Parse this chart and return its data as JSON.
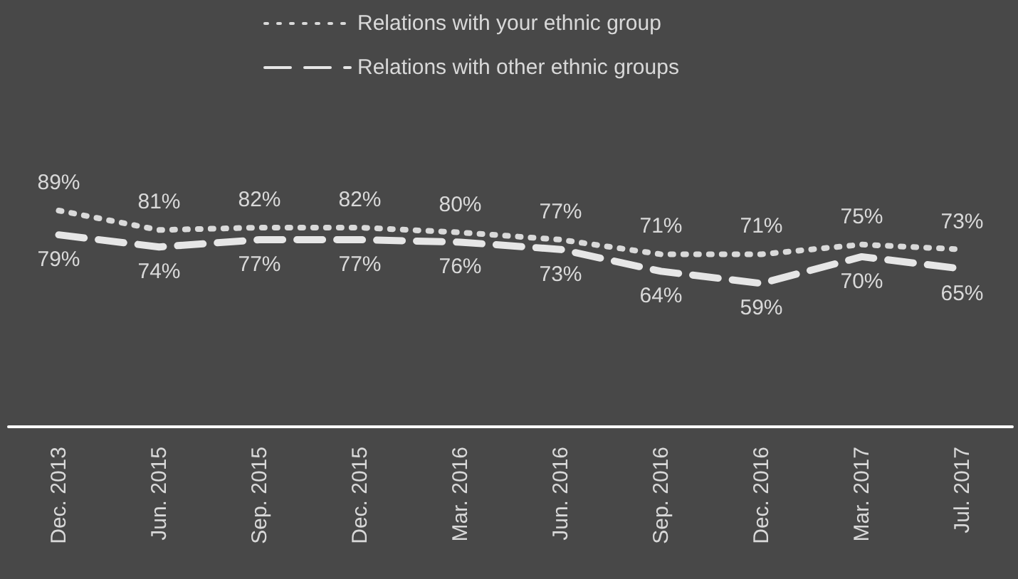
{
  "chart_data": {
    "type": "line",
    "categories": [
      "Dec. 2013",
      "Jun. 2015",
      "Sep. 2015",
      "Dec. 2015",
      "Mar. 2016",
      "Jun. 2016",
      "Sep. 2016",
      "Dec. 2016",
      "Mar. 2017",
      "Jul. 2017"
    ],
    "series": [
      {
        "name": "Relations with your ethnic group",
        "color": "#d9d9d9",
        "line_style": "dotted",
        "values": [
          89,
          81,
          82,
          82,
          80,
          77,
          71,
          71,
          75,
          73
        ],
        "value_labels": [
          "89%",
          "81%",
          "82%",
          "82%",
          "80%",
          "77%",
          "71%",
          "71%",
          "75%",
          "73%"
        ]
      },
      {
        "name": "Relations with other ethnic groups",
        "color": "#e6e6e6",
        "line_style": "dashed",
        "values": [
          79,
          74,
          77,
          77,
          76,
          73,
          64,
          59,
          70,
          65
        ],
        "value_labels": [
          "79%",
          "74%",
          "77%",
          "77%",
          "76%",
          "73%",
          "64%",
          "59%",
          "70%",
          "65%"
        ]
      }
    ],
    "marker": "none",
    "legend": "top",
    "grid": false
  }
}
